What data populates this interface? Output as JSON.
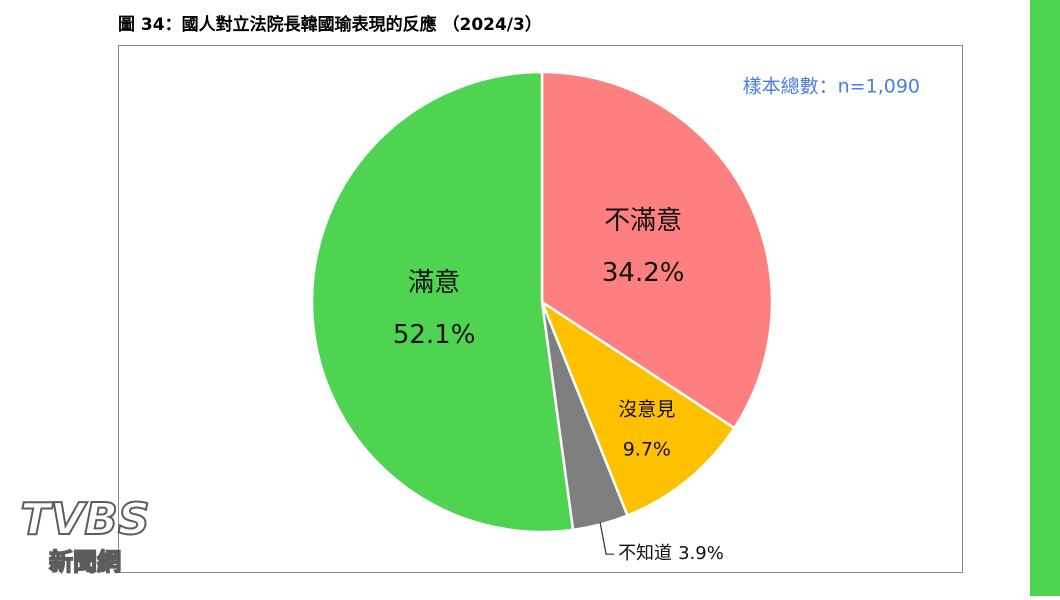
{
  "chart_data": {
    "type": "pie",
    "title": "圖 34：國人對立法院長韓國瑜表現的反應 （2024/3）",
    "annotation": "樣本總數：n=1,090",
    "categories": [
      "不滿意",
      "沒意見",
      "不知道",
      "滿意"
    ],
    "values": [
      34.2,
      9.7,
      3.9,
      52.1
    ],
    "value_labels": [
      "34.2%",
      "9.7%",
      "3.9%",
      "52.1%"
    ],
    "colors": [
      "#fe7f7f",
      "#ffc000",
      "#7f7f7f",
      "#4fd452"
    ]
  },
  "watermark": {
    "brand": "TVBS",
    "label": "新聞網"
  }
}
